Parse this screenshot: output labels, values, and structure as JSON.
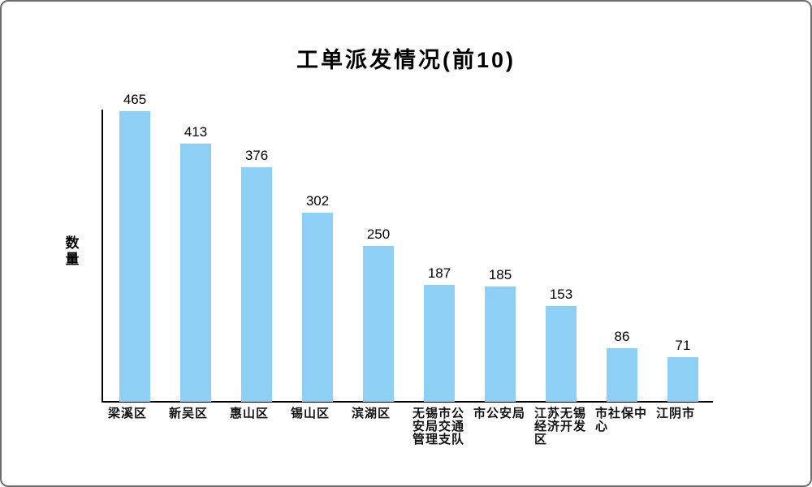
{
  "frame": {
    "background": "#ffffff",
    "border_color": "#6e6e6e"
  },
  "chart_data": {
    "type": "bar",
    "title": "工单派发情况(前10)",
    "xlabel": "",
    "ylabel": "数量",
    "categories": [
      "梁溪区",
      "新吴区",
      "惠山区",
      "锡山区",
      "滨湖区",
      "无锡市公安局交通管理支队",
      "市公安局",
      "江苏无锡经济开发区",
      "市社保中心",
      "江阴市"
    ],
    "values": [
      465,
      413,
      376,
      302,
      250,
      187,
      185,
      153,
      86,
      71
    ],
    "ylim": [
      0,
      465
    ],
    "bar_color": "#8DCFF5",
    "axis_color": "#000000",
    "text_color": "#000000",
    "grid": false,
    "legend": "none",
    "value_labels": true
  }
}
